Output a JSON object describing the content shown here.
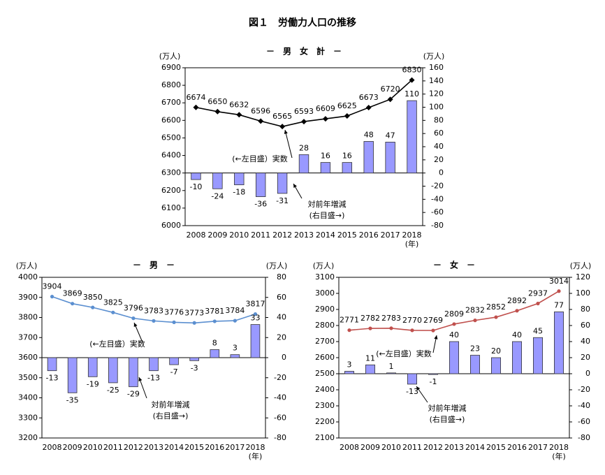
{
  "title": "図１　労働力人口の推移",
  "chart_data": [
    {
      "type": "combo",
      "title": "－　男　女　計　－",
      "yunit": "(万人)",
      "y2unit": "(万人)",
      "xunit": "(年)",
      "categories": [
        "2008",
        "2009",
        "2010",
        "2011",
        "2012",
        "2013",
        "2014",
        "2015",
        "2016",
        "2017",
        "2018"
      ],
      "series": [
        {
          "name": "(←左目盛）実数",
          "type": "line",
          "color": "#000000",
          "marker": "diamond",
          "values": [
            6674,
            6650,
            6632,
            6596,
            6565,
            6593,
            6609,
            6625,
            6673,
            6720,
            6830
          ]
        },
        {
          "name": "対前年増減",
          "note": "(右目盛→)",
          "type": "bar",
          "axis": "y2",
          "color": "#9999ff",
          "values": [
            -10,
            -24,
            -18,
            -36,
            -31,
            28,
            16,
            16,
            48,
            47,
            110
          ]
        }
      ],
      "ylim": [
        6000,
        6900
      ],
      "yticks": [
        6000,
        6100,
        6200,
        6300,
        6400,
        6500,
        6600,
        6700,
        6800,
        6900
      ],
      "y2lim": [
        -80,
        160
      ],
      "y2ticks": [
        -80,
        -60,
        -40,
        -20,
        0,
        20,
        40,
        60,
        80,
        100,
        120,
        140,
        160
      ]
    },
    {
      "type": "combo",
      "title": "－　男　－",
      "yunit": "(万人)",
      "y2unit": "(万人)",
      "xunit": "(年)",
      "categories": [
        "2008",
        "2009",
        "2010",
        "2011",
        "2012",
        "2013",
        "2014",
        "2015",
        "2016",
        "2017",
        "2018"
      ],
      "series": [
        {
          "name": "(←左目盛）実数",
          "type": "line",
          "color": "#5b8fd0",
          "marker": "circle",
          "values": [
            3904,
            3869,
            3850,
            3825,
            3796,
            3783,
            3776,
            3773,
            3781,
            3784,
            3817
          ]
        },
        {
          "name": "対前年増減",
          "note": "(右目盛→)",
          "type": "bar",
          "axis": "y2",
          "color": "#9999ff",
          "values": [
            -13,
            -35,
            -19,
            -25,
            -29,
            -13,
            -7,
            -3,
            8,
            3,
            33
          ]
        }
      ],
      "ylim": [
        3200,
        4000
      ],
      "yticks": [
        3200,
        3300,
        3400,
        3500,
        3600,
        3700,
        3800,
        3900,
        4000
      ],
      "y2lim": [
        -80,
        80
      ],
      "y2ticks": [
        -80,
        -60,
        -40,
        -20,
        0,
        20,
        40,
        60,
        80
      ]
    },
    {
      "type": "combo",
      "title": "－　女　－",
      "yunit": "(万人)",
      "y2unit": "(万人)",
      "xunit": "(年)",
      "categories": [
        "2008",
        "2009",
        "2010",
        "2011",
        "2012",
        "2013",
        "2014",
        "2015",
        "2016",
        "2017",
        "2018"
      ],
      "series": [
        {
          "name": "(←左目盛）実数",
          "type": "line",
          "color": "#c0504d",
          "marker": "circle",
          "values": [
            2771,
            2782,
            2783,
            2770,
            2769,
            2809,
            2832,
            2852,
            2892,
            2937,
            3014
          ]
        },
        {
          "name": "対前年増減",
          "note": "(右目盛→)",
          "type": "bar",
          "axis": "y2",
          "color": "#9999ff",
          "values": [
            3,
            11,
            1,
            -13,
            -1,
            40,
            23,
            20,
            40,
            45,
            77
          ]
        }
      ],
      "ylim": [
        2100,
        3100
      ],
      "yticks": [
        2100,
        2200,
        2300,
        2400,
        2500,
        2600,
        2700,
        2800,
        2900,
        3000,
        3100
      ],
      "y2lim": [
        -80,
        120
      ],
      "y2ticks": [
        -80,
        -60,
        -40,
        -20,
        0,
        20,
        40,
        60,
        80,
        100,
        120
      ]
    }
  ]
}
